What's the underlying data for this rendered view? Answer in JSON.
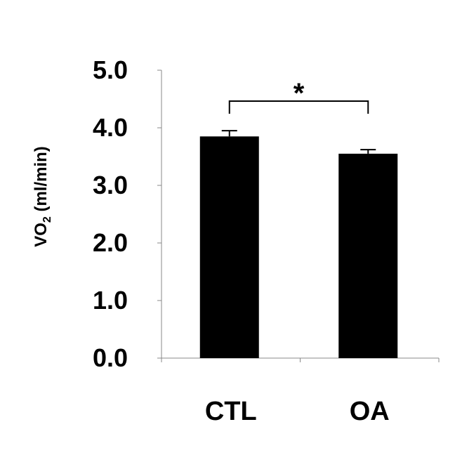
{
  "chart_data": {
    "type": "bar",
    "categories": [
      "CTL",
      "OA"
    ],
    "values": [
      3.85,
      3.55
    ],
    "errors": [
      0.1,
      0.07
    ],
    "ylim": [
      0,
      5.0
    ],
    "yticks": [
      "0.0",
      "1.0",
      "2.0",
      "3.0",
      "4.0",
      "5.0"
    ],
    "ylabel_main": "VO",
    "ylabel_sub": "2",
    "ylabel_unit": " (ml/min)",
    "significance": {
      "between": [
        "CTL",
        "OA"
      ],
      "label": "*"
    },
    "bar_color": "#000000",
    "grid": false
  }
}
